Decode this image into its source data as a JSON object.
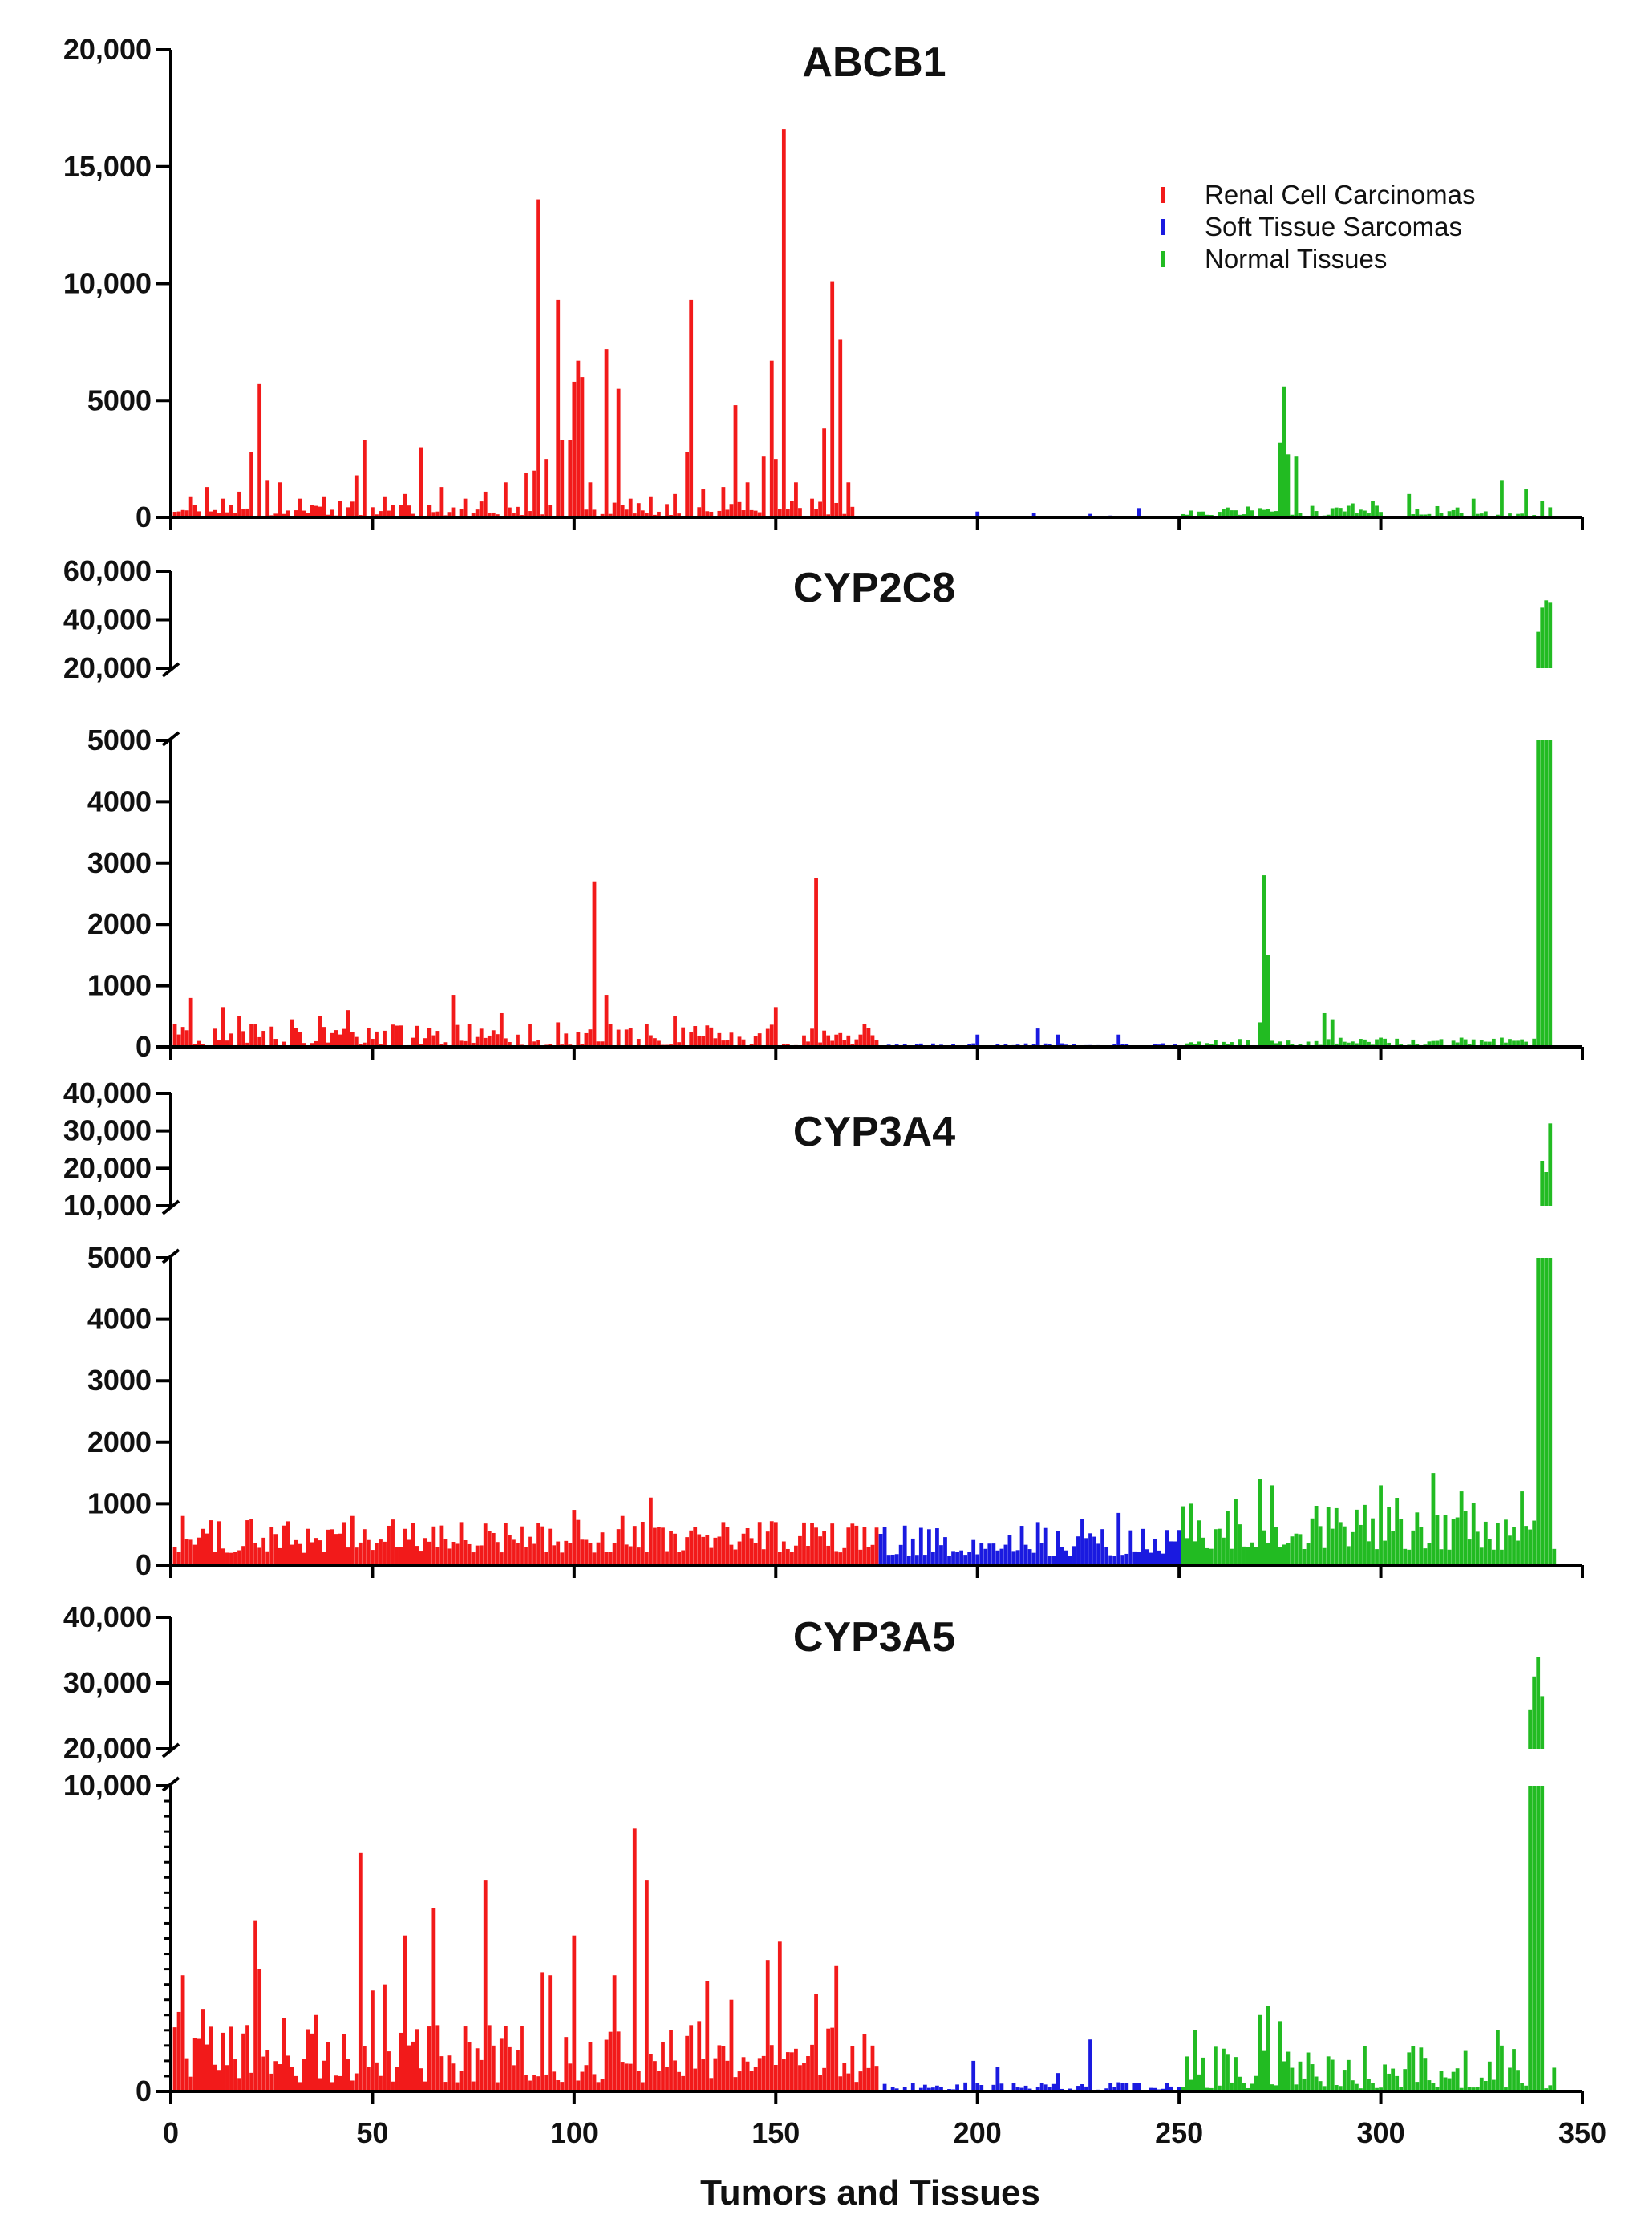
{
  "colors": {
    "renal": "#f21a1a",
    "soft": "#1a1ae0",
    "normal": "#22bb22",
    "axis": "#000000"
  },
  "xlabel": "Tumors and Tissues",
  "xticks": [
    0,
    50,
    100,
    150,
    200,
    250,
    300,
    350
  ],
  "legend": {
    "placement": "top-right of ABCB1 panel",
    "entries": [
      {
        "label": "Renal Cell Carcinomas",
        "color": "#f21a1a"
      },
      {
        "label": "Soft Tissue Sarcomas",
        "color": "#1a1ae0"
      },
      {
        "label": "Normal Tissues",
        "color": "#22bb22"
      }
    ]
  },
  "chart_data": [
    {
      "type": "bar",
      "title": "ABCB1",
      "xlim": [
        0,
        350
      ],
      "ylim": [
        0,
        20000
      ],
      "yticks": [
        {
          "v": 0,
          "t": "0"
        },
        {
          "v": 5000,
          "t": "5000"
        },
        {
          "v": 10000,
          "t": "10,000"
        },
        {
          "v": 15000,
          "t": "15,000"
        },
        {
          "v": 20000,
          "t": "20,000"
        }
      ],
      "series": [
        {
          "name": "Renal Cell Carcinomas",
          "x_range": [
            1,
            169
          ],
          "peaks": [
            [
              5,
              900
            ],
            [
              9,
              1300
            ],
            [
              13,
              800
            ],
            [
              17,
              1100
            ],
            [
              20,
              2800
            ],
            [
              22,
              5700
            ],
            [
              24,
              1600
            ],
            [
              27,
              1500
            ],
            [
              32,
              800
            ],
            [
              38,
              900
            ],
            [
              42,
              700
            ],
            [
              46,
              1800
            ],
            [
              48,
              3300
            ],
            [
              53,
              900
            ],
            [
              58,
              1000
            ],
            [
              62,
              3000
            ],
            [
              67,
              1300
            ],
            [
              73,
              800
            ],
            [
              78,
              1100
            ],
            [
              83,
              1500
            ],
            [
              88,
              1900
            ],
            [
              90,
              2000
            ],
            [
              91,
              13600
            ],
            [
              93,
              2500
            ],
            [
              96,
              9300
            ],
            [
              97,
              3300
            ],
            [
              99,
              3300
            ],
            [
              100,
              5800
            ],
            [
              101,
              6700
            ],
            [
              102,
              6000
            ],
            [
              104,
              1500
            ],
            [
              108,
              7200
            ],
            [
              111,
              5500
            ],
            [
              114,
              800
            ],
            [
              119,
              900
            ],
            [
              125,
              1000
            ],
            [
              128,
              2800
            ],
            [
              129,
              9300
            ],
            [
              132,
              1200
            ],
            [
              137,
              1300
            ],
            [
              140,
              4800
            ],
            [
              143,
              1500
            ],
            [
              147,
              2600
            ],
            [
              149,
              6700
            ],
            [
              150,
              2500
            ],
            [
              152,
              16600
            ],
            [
              155,
              1500
            ],
            [
              159,
              800
            ],
            [
              162,
              3800
            ],
            [
              164,
              10100
            ],
            [
              166,
              7600
            ],
            [
              168,
              1500
            ]
          ],
          "base": [
            0,
            700
          ]
        },
        {
          "name": "Soft Tissue Sarcomas",
          "x_range": [
            170,
            250
          ],
          "peaks": [
            [
              200,
              250
            ],
            [
              214,
              200
            ],
            [
              228,
              150
            ],
            [
              240,
              400
            ]
          ],
          "base": [
            0,
            80
          ]
        },
        {
          "name": "Normal Tissues",
          "x_range": [
            251,
            342
          ],
          "peaks": [
            [
              256,
              250
            ],
            [
              268,
              300
            ],
            [
              275,
              3200
            ],
            [
              276,
              5600
            ],
            [
              277,
              2700
            ],
            [
              279,
              2600
            ],
            [
              293,
              600
            ],
            [
              298,
              700
            ],
            [
              307,
              1000
            ],
            [
              323,
              800
            ],
            [
              330,
              1600
            ],
            [
              336,
              1200
            ],
            [
              340,
              700
            ]
          ],
          "base": [
            0,
            500
          ]
        }
      ]
    },
    {
      "type": "bar",
      "title": "CYP2C8",
      "xlim": [
        0,
        350
      ],
      "ylim": [
        0,
        60000
      ],
      "axis_break": [
        5000,
        20000
      ],
      "yticks": [
        {
          "v": 0,
          "t": "0"
        },
        {
          "v": 1000,
          "t": "1000"
        },
        {
          "v": 2000,
          "t": "2000"
        },
        {
          "v": 3000,
          "t": "3000"
        },
        {
          "v": 4000,
          "t": "4000"
        },
        {
          "v": 5000,
          "t": "5000"
        },
        {
          "v": 20000,
          "t": "20,000"
        },
        {
          "v": 40000,
          "t": "40,000"
        },
        {
          "v": 60000,
          "t": "60,000"
        }
      ],
      "series": [
        {
          "name": "Renal Cell Carcinomas",
          "x_range": [
            1,
            175
          ],
          "peaks": [
            [
              5,
              800
            ],
            [
              13,
              650
            ],
            [
              17,
              500
            ],
            [
              30,
              450
            ],
            [
              37,
              500
            ],
            [
              44,
              600
            ],
            [
              70,
              850
            ],
            [
              82,
              550
            ],
            [
              96,
              400
            ],
            [
              105,
              2700
            ],
            [
              108,
              850
            ],
            [
              125,
              500
            ],
            [
              133,
              350
            ],
            [
              150,
              650
            ],
            [
              160,
              2750
            ],
            [
              165,
              200
            ]
          ],
          "base": [
            0,
            380
          ]
        },
        {
          "name": "Soft Tissue Sarcomas",
          "x_range": [
            176,
            250
          ],
          "peaks": [
            [
              200,
              200
            ],
            [
              215,
              300
            ],
            [
              220,
              200
            ],
            [
              235,
              200
            ]
          ],
          "base": [
            0,
            60
          ]
        },
        {
          "name": "Normal Tissues",
          "x_range": [
            251,
            343
          ],
          "peaks": [
            [
              270,
              400
            ],
            [
              271,
              2800
            ],
            [
              272,
              1500
            ],
            [
              286,
              550
            ],
            [
              288,
              450
            ],
            [
              300,
              150
            ],
            [
              320,
              150
            ],
            [
              330,
              150
            ],
            [
              339,
              35000
            ],
            [
              340,
              45000
            ],
            [
              341,
              48000
            ],
            [
              342,
              47000
            ]
          ],
          "base": [
            0,
            150
          ]
        }
      ]
    },
    {
      "type": "bar",
      "title": "CYP3A4",
      "xlim": [
        0,
        350
      ],
      "ylim": [
        0,
        40000
      ],
      "axis_break": [
        5000,
        10000
      ],
      "yticks": [
        {
          "v": 0,
          "t": "0"
        },
        {
          "v": 1000,
          "t": "1000"
        },
        {
          "v": 2000,
          "t": "2000"
        },
        {
          "v": 3000,
          "t": "3000"
        },
        {
          "v": 4000,
          "t": "4000"
        },
        {
          "v": 5000,
          "t": "5000"
        },
        {
          "v": 10000,
          "t": "10,000"
        },
        {
          "v": 20000,
          "t": "20,000"
        },
        {
          "v": 30000,
          "t": "30,000"
        },
        {
          "v": 40000,
          "t": "40,000"
        }
      ],
      "series": [
        {
          "name": "Renal Cell Carcinomas",
          "x_range": [
            1,
            175
          ],
          "peaks": [
            [
              3,
              800
            ],
            [
              20,
              750
            ],
            [
              45,
              800
            ],
            [
              72,
              700
            ],
            [
              100,
              900
            ],
            [
              112,
              800
            ],
            [
              119,
              1100
            ],
            [
              137,
              700
            ],
            [
              150,
              700
            ]
          ],
          "base": [
            200,
            750
          ]
        },
        {
          "name": "Soft Tissue Sarcomas",
          "x_range": [
            176,
            250
          ],
          "peaks": [
            [
              190,
              600
            ],
            [
              215,
              700
            ],
            [
              226,
              750
            ],
            [
              235,
              850
            ]
          ],
          "base": [
            150,
            650
          ]
        },
        {
          "name": "Normal Tissues",
          "x_range": [
            251,
            343
          ],
          "peaks": [
            [
              253,
              1000
            ],
            [
              270,
              1400
            ],
            [
              273,
              1300
            ],
            [
              300,
              1300
            ],
            [
              313,
              1500
            ],
            [
              320,
              1200
            ],
            [
              335,
              1200
            ],
            [
              339,
              6000
            ],
            [
              340,
              22000
            ],
            [
              341,
              19000
            ],
            [
              342,
              32000
            ]
          ],
          "base": [
            250,
            1100
          ]
        }
      ]
    },
    {
      "type": "bar",
      "title": "CYP3A5",
      "xlim": [
        0,
        350
      ],
      "ylim": [
        0,
        40000
      ],
      "axis_break": [
        10000,
        20000
      ],
      "yticks": [
        {
          "v": 0,
          "t": "0"
        },
        {
          "v": 10000,
          "t": "10,000"
        },
        {
          "v": 20000,
          "t": "20,000"
        },
        {
          "v": 30000,
          "t": "30,000"
        },
        {
          "v": 40000,
          "t": "40,000"
        }
      ],
      "series": [
        {
          "name": "Renal Cell Carcinomas",
          "x_range": [
            1,
            175
          ],
          "peaks": [
            [
              2,
              2600
            ],
            [
              3,
              3800
            ],
            [
              8,
              2700
            ],
            [
              21,
              5600
            ],
            [
              22,
              4000
            ],
            [
              28,
              2400
            ],
            [
              36,
              2500
            ],
            [
              47,
              7800
            ],
            [
              50,
              3300
            ],
            [
              53,
              3500
            ],
            [
              58,
              5100
            ],
            [
              65,
              6000
            ],
            [
              78,
              6900
            ],
            [
              80,
              1500
            ],
            [
              92,
              3900
            ],
            [
              94,
              3800
            ],
            [
              100,
              5100
            ],
            [
              110,
              3800
            ],
            [
              115,
              8600
            ],
            [
              118,
              6900
            ],
            [
              131,
              2300
            ],
            [
              133,
              3600
            ],
            [
              139,
              3000
            ],
            [
              148,
              4300
            ],
            [
              151,
              4900
            ],
            [
              160,
              3200
            ],
            [
              165,
              4100
            ]
          ],
          "base": [
            300,
            2200
          ]
        },
        {
          "name": "Soft Tissue Sarcomas",
          "x_range": [
            176,
            250
          ],
          "peaks": [
            [
              199,
              1000
            ],
            [
              205,
              800
            ],
            [
              220,
              600
            ],
            [
              228,
              1700
            ],
            [
              235,
              300
            ]
          ],
          "base": [
            0,
            300
          ]
        },
        {
          "name": "Normal Tissues",
          "x_range": [
            251,
            343
          ],
          "peaks": [
            [
              254,
              2000
            ],
            [
              262,
              1200
            ],
            [
              270,
              2500
            ],
            [
              272,
              2800
            ],
            [
              275,
              2300
            ],
            [
              329,
              2000
            ],
            [
              330,
              1500
            ],
            [
              337,
              26000
            ],
            [
              338,
              31000
            ],
            [
              339,
              34000
            ],
            [
              340,
              28000
            ]
          ],
          "base": [
            100,
            1500
          ]
        }
      ]
    }
  ]
}
